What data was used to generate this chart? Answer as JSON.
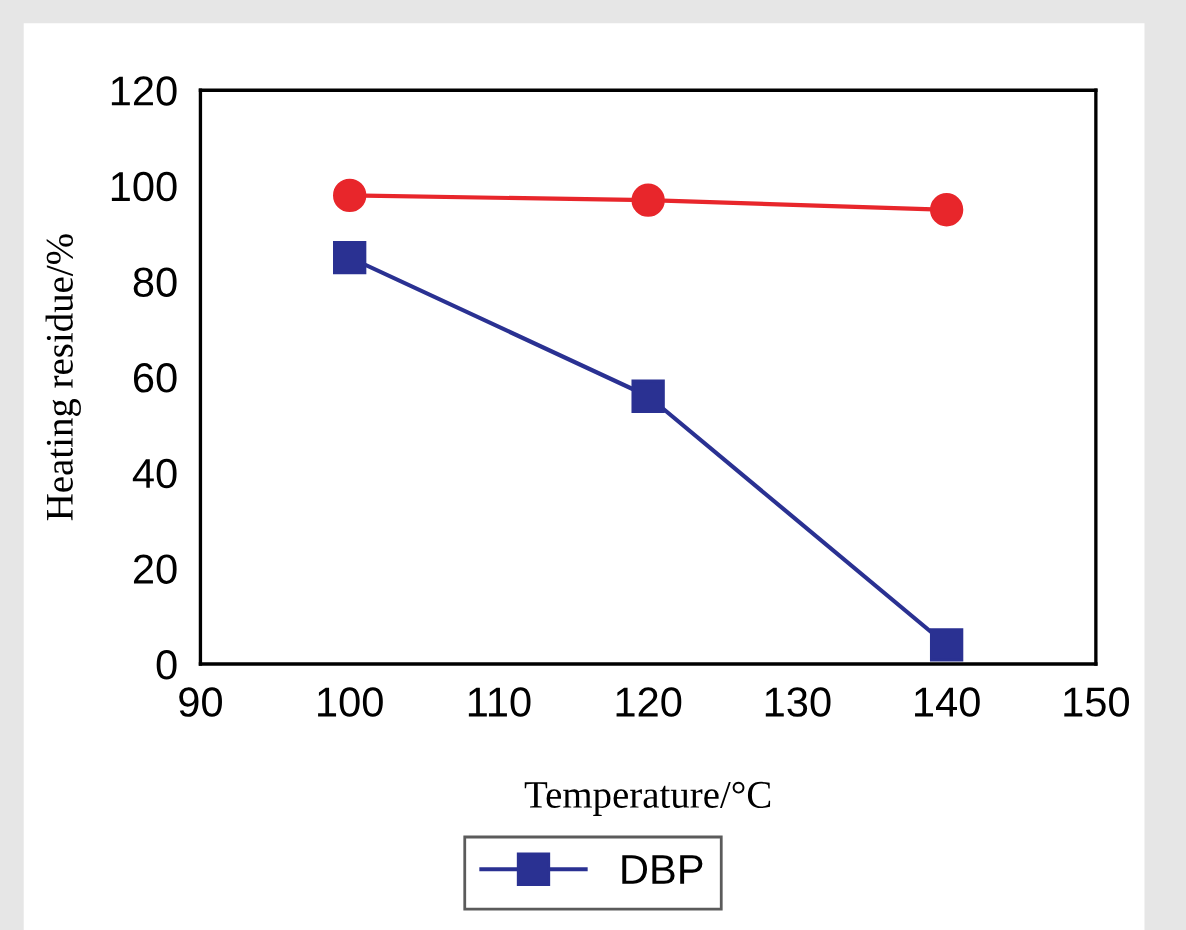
{
  "chart_data": {
    "type": "line",
    "xlabel": "Temperature/°C",
    "ylabel": "Heating residue/%",
    "x": [
      100,
      120,
      140
    ],
    "series": [
      {
        "color": "#e8262b",
        "values": [
          98,
          97,
          95
        ],
        "marker": "circle"
      },
      {
        "name": "DBP",
        "color": "#2a3192",
        "values": [
          85,
          56,
          4
        ],
        "marker": "square"
      }
    ],
    "xlim": [
      90,
      150
    ],
    "xticks": [
      90,
      100,
      110,
      120,
      130,
      140,
      150
    ],
    "ylim": [
      0,
      120
    ],
    "yticks": [
      0,
      20,
      40,
      60,
      80,
      100,
      120
    ],
    "grid": false,
    "legend": "bottom",
    "line_style": "solid"
  }
}
